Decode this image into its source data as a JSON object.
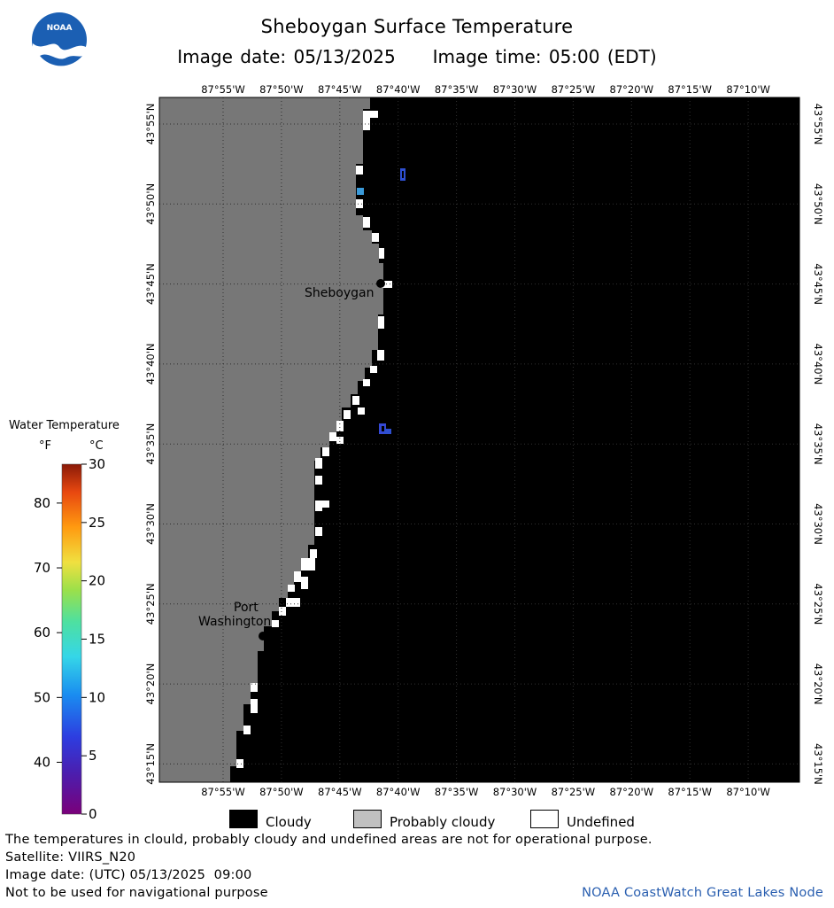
{
  "header": {
    "title": "Sheboygan Surface Temperature",
    "image_date_label": "Image date:",
    "image_date": "05/13/2025",
    "image_time_label": "Image time:",
    "image_time": "05:00 (EDT)",
    "logo_text": "NOAA"
  },
  "map": {
    "lon_labels": [
      "87°55'W",
      "87°50'W",
      "87°45'W",
      "87°40'W",
      "87°35'W",
      "87°30'W",
      "87°25'W",
      "87°20'W",
      "87°15'W",
      "87°10'W"
    ],
    "lat_labels": [
      "43°55'N",
      "43°50'N",
      "43°45'N",
      "43°40'N",
      "43°35'N",
      "43°30'N",
      "43°25'N",
      "43°20'N",
      "43°15'N"
    ],
    "places": {
      "sheboygan": "Sheboygan",
      "port_washington_line1": "Port",
      "port_washington_line2": "Washington"
    },
    "colors": {
      "land": "#777777",
      "cloudy": "#000000",
      "undefined": "#ffffff",
      "grid": "#222222"
    }
  },
  "legend": {
    "title": "Water Temperature",
    "unit_f": "°F",
    "unit_c": "°C",
    "fahrenheit_ticks": [
      "80",
      "70",
      "60",
      "50",
      "40"
    ],
    "celsius_ticks": [
      "30",
      "25",
      "20",
      "15",
      "10",
      "5",
      "0"
    ]
  },
  "categories": {
    "cloudy": "Cloudy",
    "probably_cloudy": "Probably cloudy",
    "undefined": "Undefined"
  },
  "footer": {
    "disclaimer": "The temperatures in clould, probably cloudy and undefined areas are not for operational purpose.",
    "satellite": "Satellite: VIIRS_N20",
    "image_date_utc": "Image date: (UTC) 05/13/2025  09:00",
    "navigation_warning": "Not to be used for navigational purpose",
    "credit": "NOAA CoastWatch Great Lakes Node"
  }
}
